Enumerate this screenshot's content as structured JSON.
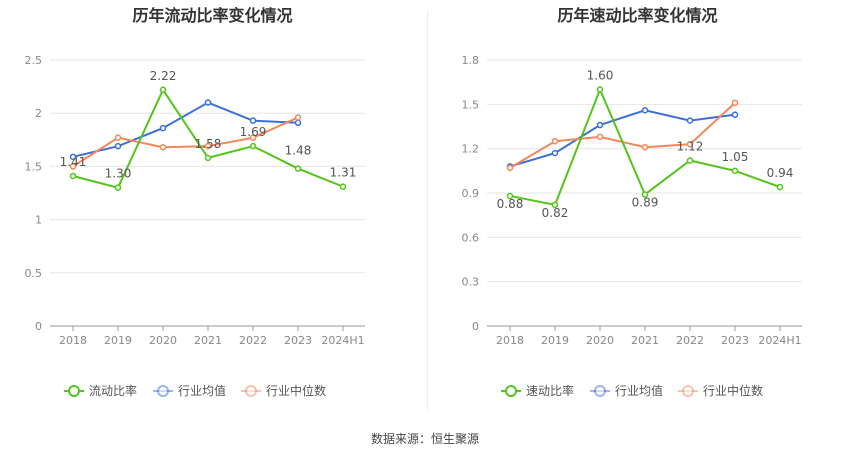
{
  "footer": {
    "label": "数据来源：",
    "source": "恒生聚源"
  },
  "chart_data": [
    {
      "type": "line",
      "title": "历年流动比率变化情况",
      "categories": [
        "2018",
        "2019",
        "2020",
        "2021",
        "2022",
        "2023",
        "2024H1"
      ],
      "ylim": [
        0,
        2.5
      ],
      "yticks": [
        0,
        0.5,
        1,
        1.5,
        2,
        2.5
      ],
      "ytick_labels": [
        "0",
        "0.5",
        "1",
        "1.5",
        "2",
        "2.5"
      ],
      "grid": true,
      "legend": "bottom",
      "series": [
        {
          "name": "流动比率",
          "color": "#52c41a",
          "values": [
            1.41,
            1.3,
            2.22,
            1.58,
            1.69,
            1.48,
            1.31
          ],
          "labels": [
            "1.41",
            "1.30",
            "2.22",
            "1.58",
            "1.69",
            "1.48",
            "1.31"
          ]
        },
        {
          "name": "行业均值",
          "color": "#3b6fd8",
          "values": [
            1.59,
            1.69,
            1.86,
            2.1,
            1.93,
            1.91,
            null
          ]
        },
        {
          "name": "行业中位数",
          "color": "#f4875a",
          "values": [
            1.5,
            1.77,
            1.68,
            1.69,
            1.77,
            1.96,
            null
          ]
        }
      ]
    },
    {
      "type": "line",
      "title": "历年速动比率变化情况",
      "categories": [
        "2018",
        "2019",
        "2020",
        "2021",
        "2022",
        "2023",
        "2024H1"
      ],
      "ylim": [
        0,
        1.8
      ],
      "yticks": [
        0,
        0.3,
        0.6,
        0.9,
        1.2,
        1.5,
        1.8
      ],
      "ytick_labels": [
        "0",
        "0.3",
        "0.6",
        "0.9",
        "1.2",
        "1.5",
        "1.8"
      ],
      "grid": true,
      "legend": "bottom",
      "series": [
        {
          "name": "速动比率",
          "color": "#52c41a",
          "values": [
            0.88,
            0.82,
            1.6,
            0.89,
            1.12,
            1.05,
            0.94
          ],
          "labels": [
            "0.88",
            "0.82",
            "1.60",
            "0.89",
            "1.12",
            "1.05",
            "0.94"
          ]
        },
        {
          "name": "行业均值",
          "color": "#3b6fd8",
          "values": [
            1.08,
            1.17,
            1.36,
            1.46,
            1.39,
            1.43,
            null
          ]
        },
        {
          "name": "行业中位数",
          "color": "#f4875a",
          "values": [
            1.07,
            1.25,
            1.28,
            1.21,
            1.23,
            1.51,
            null
          ]
        }
      ]
    }
  ]
}
